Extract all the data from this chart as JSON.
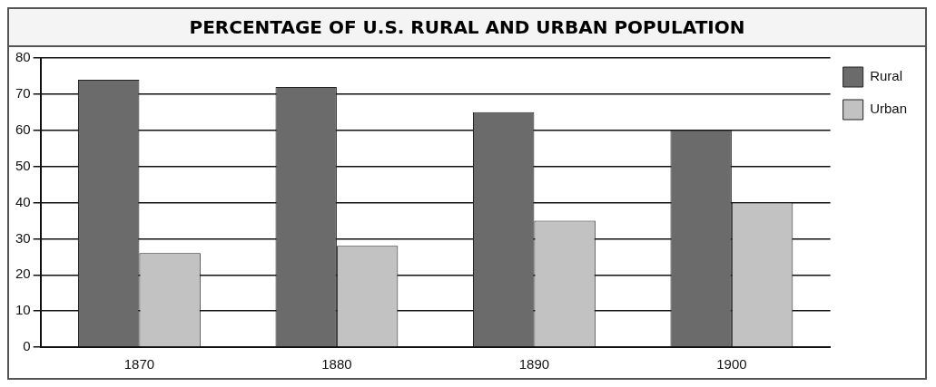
{
  "chart_data": {
    "type": "bar",
    "title": "PERCENTAGE OF U.S. RURAL AND URBAN POPULATION",
    "categories": [
      "1870",
      "1880",
      "1890",
      "1900"
    ],
    "series": [
      {
        "name": "Rural",
        "color": "#6b6b6b",
        "values": [
          74,
          72,
          65,
          60
        ]
      },
      {
        "name": "Urban",
        "color": "#c2c2c2",
        "values": [
          26,
          28,
          35,
          40
        ]
      }
    ],
    "ylim": [
      0,
      80
    ],
    "yticks": [
      0,
      10,
      20,
      30,
      40,
      50,
      60,
      70,
      80
    ],
    "grid": "y",
    "legend": "top right"
  }
}
